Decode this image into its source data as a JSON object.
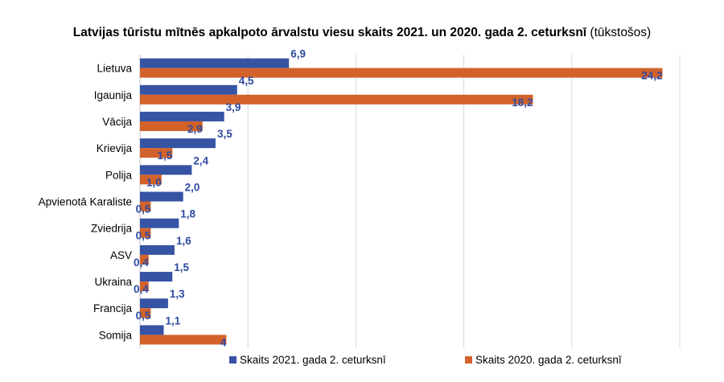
{
  "chart_data": {
    "type": "bar",
    "orientation": "horizontal",
    "title": "Latvijas tūristu mītnēs apkalpoto ārvalstu viesu skaits 2021. un 2020. gada 2. ceturksnī",
    "unit": "(tūkstošos)",
    "categories": [
      "Lietuva",
      "Igaunija",
      "Vācija",
      "Krievija",
      "Polija",
      "Apvienotā Karaliste",
      "Zviedrija",
      "ASV",
      "Ukraina",
      "Francija",
      "Somija"
    ],
    "series": [
      {
        "name": "Skaits 2021. gada 2. ceturksnī",
        "color": "#3653a4",
        "values": [
          6.9,
          4.5,
          3.9,
          3.5,
          2.4,
          2.0,
          1.8,
          1.6,
          1.5,
          1.3,
          1.1
        ],
        "labels": [
          "6,9",
          "4,5",
          "3,9",
          "3,5",
          "2,4",
          "2,0",
          "1,8",
          "1,6",
          "1,5",
          "1,3",
          "1,1"
        ]
      },
      {
        "name": "Skaits 2020. gada 2. ceturksnī",
        "color": "#d2622a",
        "values": [
          24.2,
          18.2,
          2.9,
          1.5,
          1.0,
          0.5,
          0.5,
          0.4,
          0.4,
          0.5,
          4
        ],
        "labels": [
          "24,2",
          "18,2",
          "2,9",
          "1,5",
          "1,0",
          "0,5",
          "0,5",
          "0,4",
          "0,4",
          "0,5",
          "4"
        ]
      }
    ],
    "xlim": [
      0,
      25
    ],
    "grid": true,
    "legend_position": "bottom"
  }
}
